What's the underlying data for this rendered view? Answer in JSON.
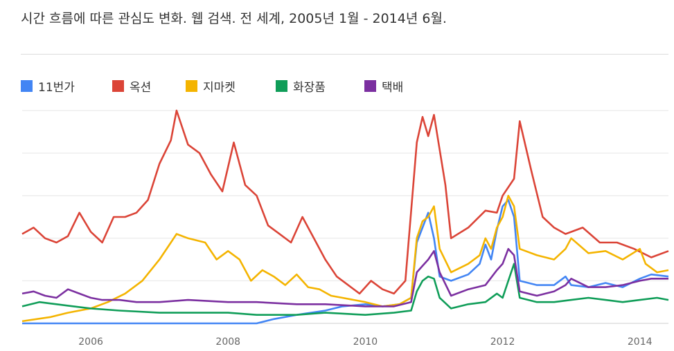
{
  "title": "시간 흐름에 따른 관심도 변화. 웹 검색. 전 세계, 2005년 1월 - 2014년 6월.",
  "legend": [
    {
      "label": "11번가",
      "color": "#4285f4"
    },
    {
      "label": "옥션",
      "color": "#db4437"
    },
    {
      "label": "지마켓",
      "color": "#f4b400"
    },
    {
      "label": "화장품",
      "color": "#0f9d58"
    },
    {
      "label": "택배",
      "color": "#7b2fa0"
    }
  ],
  "chart_data": {
    "type": "line",
    "title": "시간 흐름에 따른 관심도 변화. 웹 검색. 전 세계, 2005년 1월 - 2014년 6월.",
    "xlabel": "",
    "ylabel": "",
    "x_range": [
      "2005-01",
      "2014-06"
    ],
    "ylim": [
      0,
      100
    ],
    "grid": true,
    "legend_position": "top-left",
    "x_ticks": [
      "2006",
      "2008",
      "2010",
      "2012",
      "2014"
    ],
    "series": [
      {
        "name": "11번가",
        "color": "#4285f4",
        "points": [
          [
            "2005-01",
            0
          ],
          [
            "2008-06",
            0
          ],
          [
            "2008-09",
            2
          ],
          [
            "2009-01",
            4
          ],
          [
            "2009-06",
            6
          ],
          [
            "2009-09",
            8
          ],
          [
            "2010-01",
            9
          ],
          [
            "2010-04",
            8
          ],
          [
            "2010-07",
            9
          ],
          [
            "2010-09",
            12
          ],
          [
            "2010-10",
            38
          ],
          [
            "2010-11",
            45
          ],
          [
            "2010-12",
            52
          ],
          [
            "2011-01",
            40
          ],
          [
            "2011-02",
            22
          ],
          [
            "2011-04",
            20
          ],
          [
            "2011-07",
            23
          ],
          [
            "2011-09",
            28
          ],
          [
            "2011-10",
            37
          ],
          [
            "2011-11",
            30
          ],
          [
            "2011-12",
            44
          ],
          [
            "2012-01",
            55
          ],
          [
            "2012-02",
            58
          ],
          [
            "2012-03",
            50
          ],
          [
            "2012-04",
            20
          ],
          [
            "2012-07",
            18
          ],
          [
            "2012-10",
            18
          ],
          [
            "2012-12",
            22
          ],
          [
            "2013-01",
            18
          ],
          [
            "2013-04",
            17
          ],
          [
            "2013-07",
            19
          ],
          [
            "2013-10",
            17
          ],
          [
            "2014-01",
            21
          ],
          [
            "2014-03",
            23
          ],
          [
            "2014-06",
            22
          ]
        ]
      },
      {
        "name": "옥션",
        "color": "#db4437",
        "points": [
          [
            "2005-01",
            42
          ],
          [
            "2005-03",
            45
          ],
          [
            "2005-05",
            40
          ],
          [
            "2005-07",
            38
          ],
          [
            "2005-09",
            41
          ],
          [
            "2005-11",
            52
          ],
          [
            "2006-01",
            43
          ],
          [
            "2006-03",
            38
          ],
          [
            "2006-05",
            50
          ],
          [
            "2006-07",
            50
          ],
          [
            "2006-09",
            52
          ],
          [
            "2006-11",
            58
          ],
          [
            "2007-01",
            75
          ],
          [
            "2007-03",
            86
          ],
          [
            "2007-04",
            100
          ],
          [
            "2007-06",
            84
          ],
          [
            "2007-08",
            80
          ],
          [
            "2007-10",
            70
          ],
          [
            "2007-12",
            62
          ],
          [
            "2008-02",
            85
          ],
          [
            "2008-04",
            65
          ],
          [
            "2008-06",
            60
          ],
          [
            "2008-08",
            46
          ],
          [
            "2008-10",
            42
          ],
          [
            "2008-12",
            38
          ],
          [
            "2009-02",
            50
          ],
          [
            "2009-04",
            40
          ],
          [
            "2009-06",
            30
          ],
          [
            "2009-08",
            22
          ],
          [
            "2009-10",
            18
          ],
          [
            "2009-12",
            14
          ],
          [
            "2010-02",
            20
          ],
          [
            "2010-04",
            16
          ],
          [
            "2010-06",
            14
          ],
          [
            "2010-08",
            20
          ],
          [
            "2010-10",
            85
          ],
          [
            "2010-11",
            97
          ],
          [
            "2010-12",
            88
          ],
          [
            "2011-01",
            98
          ],
          [
            "2011-03",
            65
          ],
          [
            "2011-04",
            40
          ],
          [
            "2011-07",
            45
          ],
          [
            "2011-10",
            53
          ],
          [
            "2011-12",
            52
          ],
          [
            "2012-01",
            60
          ],
          [
            "2012-03",
            68
          ],
          [
            "2012-04",
            95
          ],
          [
            "2012-06",
            72
          ],
          [
            "2012-08",
            50
          ],
          [
            "2012-10",
            45
          ],
          [
            "2012-12",
            42
          ],
          [
            "2013-03",
            45
          ],
          [
            "2013-06",
            38
          ],
          [
            "2013-09",
            38
          ],
          [
            "2013-12",
            35
          ],
          [
            "2014-03",
            31
          ],
          [
            "2014-06",
            34
          ]
        ]
      },
      {
        "name": "지마켓",
        "color": "#f4b400",
        "points": [
          [
            "2005-01",
            1
          ],
          [
            "2005-06",
            3
          ],
          [
            "2005-09",
            5
          ],
          [
            "2006-01",
            7
          ],
          [
            "2006-04",
            10
          ],
          [
            "2006-07",
            14
          ],
          [
            "2006-10",
            20
          ],
          [
            "2007-01",
            30
          ],
          [
            "2007-03",
            38
          ],
          [
            "2007-04",
            42
          ],
          [
            "2007-06",
            40
          ],
          [
            "2007-09",
            38
          ],
          [
            "2007-11",
            30
          ],
          [
            "2008-01",
            34
          ],
          [
            "2008-03",
            30
          ],
          [
            "2008-05",
            20
          ],
          [
            "2008-07",
            25
          ],
          [
            "2008-09",
            22
          ],
          [
            "2008-11",
            18
          ],
          [
            "2009-01",
            23
          ],
          [
            "2009-03",
            17
          ],
          [
            "2009-05",
            16
          ],
          [
            "2009-07",
            13
          ],
          [
            "2009-09",
            12
          ],
          [
            "2009-11",
            11
          ],
          [
            "2010-01",
            10
          ],
          [
            "2010-04",
            8
          ],
          [
            "2010-07",
            9
          ],
          [
            "2010-09",
            12
          ],
          [
            "2010-10",
            40
          ],
          [
            "2010-11",
            48
          ],
          [
            "2010-12",
            50
          ],
          [
            "2011-01",
            55
          ],
          [
            "2011-02",
            35
          ],
          [
            "2011-04",
            24
          ],
          [
            "2011-07",
            28
          ],
          [
            "2011-09",
            32
          ],
          [
            "2011-10",
            40
          ],
          [
            "2011-11",
            35
          ],
          [
            "2011-12",
            45
          ],
          [
            "2012-01",
            50
          ],
          [
            "2012-02",
            60
          ],
          [
            "2012-03",
            55
          ],
          [
            "2012-04",
            35
          ],
          [
            "2012-07",
            32
          ],
          [
            "2012-10",
            30
          ],
          [
            "2012-12",
            35
          ],
          [
            "2013-01",
            40
          ],
          [
            "2013-04",
            33
          ],
          [
            "2013-07",
            34
          ],
          [
            "2013-10",
            30
          ],
          [
            "2014-01",
            35
          ],
          [
            "2014-02",
            28
          ],
          [
            "2014-04",
            24
          ],
          [
            "2014-06",
            25
          ]
        ]
      },
      {
        "name": "화장품",
        "color": "#0f9d58",
        "points": [
          [
            "2005-01",
            8
          ],
          [
            "2005-04",
            10
          ],
          [
            "2005-07",
            9
          ],
          [
            "2005-10",
            8
          ],
          [
            "2006-01",
            7
          ],
          [
            "2006-06",
            6
          ],
          [
            "2007-01",
            5
          ],
          [
            "2007-06",
            5
          ],
          [
            "2008-01",
            5
          ],
          [
            "2008-06",
            4
          ],
          [
            "2009-01",
            4
          ],
          [
            "2009-06",
            5
          ],
          [
            "2010-01",
            4
          ],
          [
            "2010-06",
            5
          ],
          [
            "2010-09",
            6
          ],
          [
            "2010-10",
            15
          ],
          [
            "2010-11",
            20
          ],
          [
            "2010-12",
            22
          ],
          [
            "2011-01",
            21
          ],
          [
            "2011-02",
            12
          ],
          [
            "2011-04",
            7
          ],
          [
            "2011-07",
            9
          ],
          [
            "2011-10",
            10
          ],
          [
            "2011-12",
            14
          ],
          [
            "2012-01",
            12
          ],
          [
            "2012-02",
            20
          ],
          [
            "2012-03",
            28
          ],
          [
            "2012-04",
            12
          ],
          [
            "2012-07",
            10
          ],
          [
            "2012-10",
            10
          ],
          [
            "2013-01",
            11
          ],
          [
            "2013-04",
            12
          ],
          [
            "2013-07",
            11
          ],
          [
            "2013-10",
            10
          ],
          [
            "2014-01",
            11
          ],
          [
            "2014-04",
            12
          ],
          [
            "2014-06",
            11
          ]
        ]
      },
      {
        "name": "택배",
        "color": "#7b2fa0",
        "points": [
          [
            "2005-01",
            14
          ],
          [
            "2005-03",
            15
          ],
          [
            "2005-05",
            13
          ],
          [
            "2005-07",
            12
          ],
          [
            "2005-09",
            16
          ],
          [
            "2005-11",
            14
          ],
          [
            "2006-01",
            12
          ],
          [
            "2006-03",
            11
          ],
          [
            "2006-06",
            11
          ],
          [
            "2006-09",
            10
          ],
          [
            "2007-01",
            10
          ],
          [
            "2007-06",
            11
          ],
          [
            "2008-01",
            10
          ],
          [
            "2008-06",
            10
          ],
          [
            "2009-01",
            9
          ],
          [
            "2009-06",
            9
          ],
          [
            "2010-01",
            8
          ],
          [
            "2010-06",
            8
          ],
          [
            "2010-09",
            10
          ],
          [
            "2010-10",
            24
          ],
          [
            "2010-11",
            27
          ],
          [
            "2010-12",
            30
          ],
          [
            "2011-01",
            34
          ],
          [
            "2011-02",
            24
          ],
          [
            "2011-04",
            13
          ],
          [
            "2011-07",
            16
          ],
          [
            "2011-10",
            18
          ],
          [
            "2011-12",
            25
          ],
          [
            "2012-01",
            28
          ],
          [
            "2012-02",
            35
          ],
          [
            "2012-03",
            32
          ],
          [
            "2012-04",
            15
          ],
          [
            "2012-07",
            13
          ],
          [
            "2012-10",
            15
          ],
          [
            "2012-12",
            18
          ],
          [
            "2013-01",
            21
          ],
          [
            "2013-04",
            17
          ],
          [
            "2013-07",
            17
          ],
          [
            "2013-10",
            18
          ],
          [
            "2014-01",
            20
          ],
          [
            "2014-03",
            21
          ],
          [
            "2014-06",
            21
          ]
        ]
      }
    ]
  }
}
